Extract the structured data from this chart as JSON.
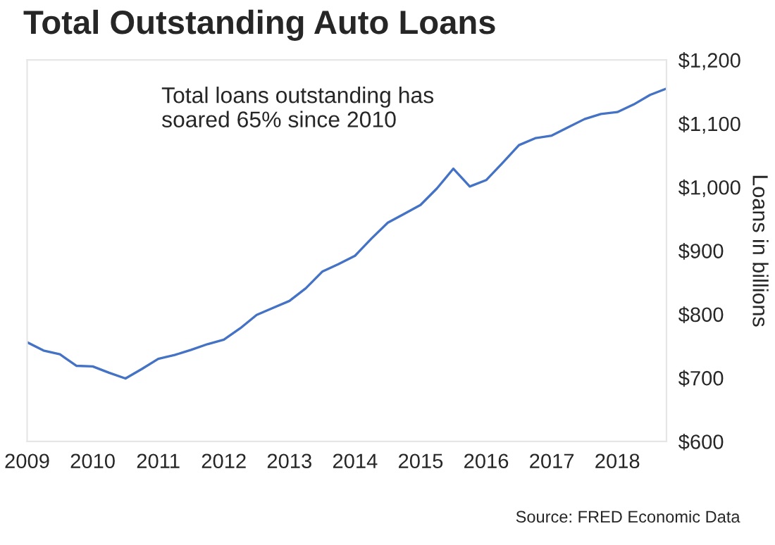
{
  "chart_data": {
    "type": "line",
    "title": "Total Outstanding Auto Loans",
    "ylabel": "Loans in billions",
    "annotations": [
      "Total loans outstanding has\nsoared 65% since 2010",
      "Source: FRED Economic Data"
    ],
    "x": [
      2009.0,
      2009.25,
      2009.5,
      2009.75,
      2010.0,
      2010.25,
      2010.5,
      2010.75,
      2011.0,
      2011.25,
      2011.5,
      2011.75,
      2012.0,
      2012.25,
      2012.5,
      2012.75,
      2013.0,
      2013.25,
      2013.5,
      2013.75,
      2014.0,
      2014.25,
      2014.5,
      2014.75,
      2015.0,
      2015.25,
      2015.5,
      2015.75,
      2016.0,
      2016.25,
      2016.5,
      2016.75,
      2017.0,
      2017.25,
      2017.5,
      2017.75,
      2018.0,
      2018.25,
      2018.5,
      2018.75
    ],
    "series": [
      {
        "color": "#4472c4",
        "values": [
          756,
          743,
          737,
          719,
          718,
          708,
          699,
          714,
          730,
          736,
          744,
          753,
          760,
          778,
          799,
          810,
          821,
          841,
          867,
          879,
          892,
          919,
          944,
          958,
          972,
          998,
          1029,
          1001,
          1011,
          1038,
          1066,
          1077,
          1081,
          1094,
          1107,
          1115,
          1118,
          1130,
          1145,
          1155
        ]
      }
    ],
    "xlim": [
      2009,
      2018.75
    ],
    "xticks": [
      2009,
      2010,
      2011,
      2012,
      2013,
      2014,
      2015,
      2016,
      2017,
      2018
    ],
    "ylim": [
      600,
      1200
    ],
    "yticks": [
      {
        "value": 600,
        "label": "$600"
      },
      {
        "value": 700,
        "label": "$700"
      },
      {
        "value": 800,
        "label": "$800"
      },
      {
        "value": 900,
        "label": "$900"
      },
      {
        "value": 1000,
        "label": "$1,000"
      },
      {
        "value": 1100,
        "label": "$1,100"
      },
      {
        "value": 1200,
        "label": "$1,200"
      }
    ],
    "grid": false,
    "legend": false,
    "marker": "none",
    "line_style": "solid"
  }
}
